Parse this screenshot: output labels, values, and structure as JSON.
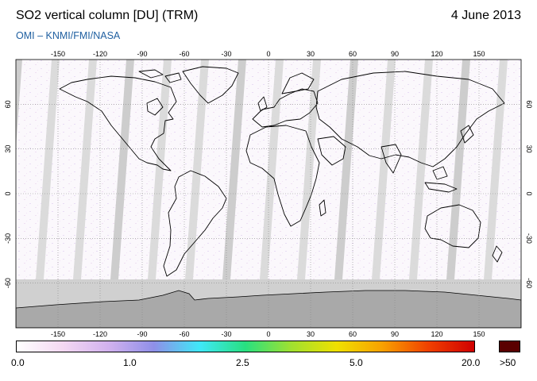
{
  "header": {
    "title": "SO2 vertical column [DU] (TRM)",
    "date": "4 June 2013",
    "subtitle": "OMI  –  KNMI/FMI/NASA"
  },
  "map": {
    "lon_ticks_top": [
      "-150",
      "-120",
      "-90",
      "-60",
      "-30",
      "0",
      "30",
      "60",
      "90",
      "120",
      "150"
    ],
    "lon_ticks_bottom": [
      "-150",
      "-120",
      "-90",
      "-60",
      "-30",
      "0",
      "30",
      "60",
      "90",
      "120",
      "150"
    ],
    "lat_ticks": [
      "60",
      "30",
      "0",
      "-30",
      "-60"
    ],
    "projection": "equirectangular",
    "coverage_gaps": "grey orbital swath gaps",
    "antarctica_color": "#a8a8a8",
    "polar_night_color": "#cfcfcf"
  },
  "colorbar": {
    "labels": [
      "0.0",
      "1.0",
      "2.5",
      "5.0",
      "20.0"
    ],
    "over_label": ">50",
    "colors": [
      "#ffffff",
      "#f4d8f2",
      "#d2b2ee",
      "#8f8fe8",
      "#3fe8f8",
      "#28e080",
      "#a0e030",
      "#f0e000",
      "#f8a000",
      "#f04000",
      "#d00000"
    ],
    "over_color": "#5a0000",
    "scale": "nonlinear"
  }
}
